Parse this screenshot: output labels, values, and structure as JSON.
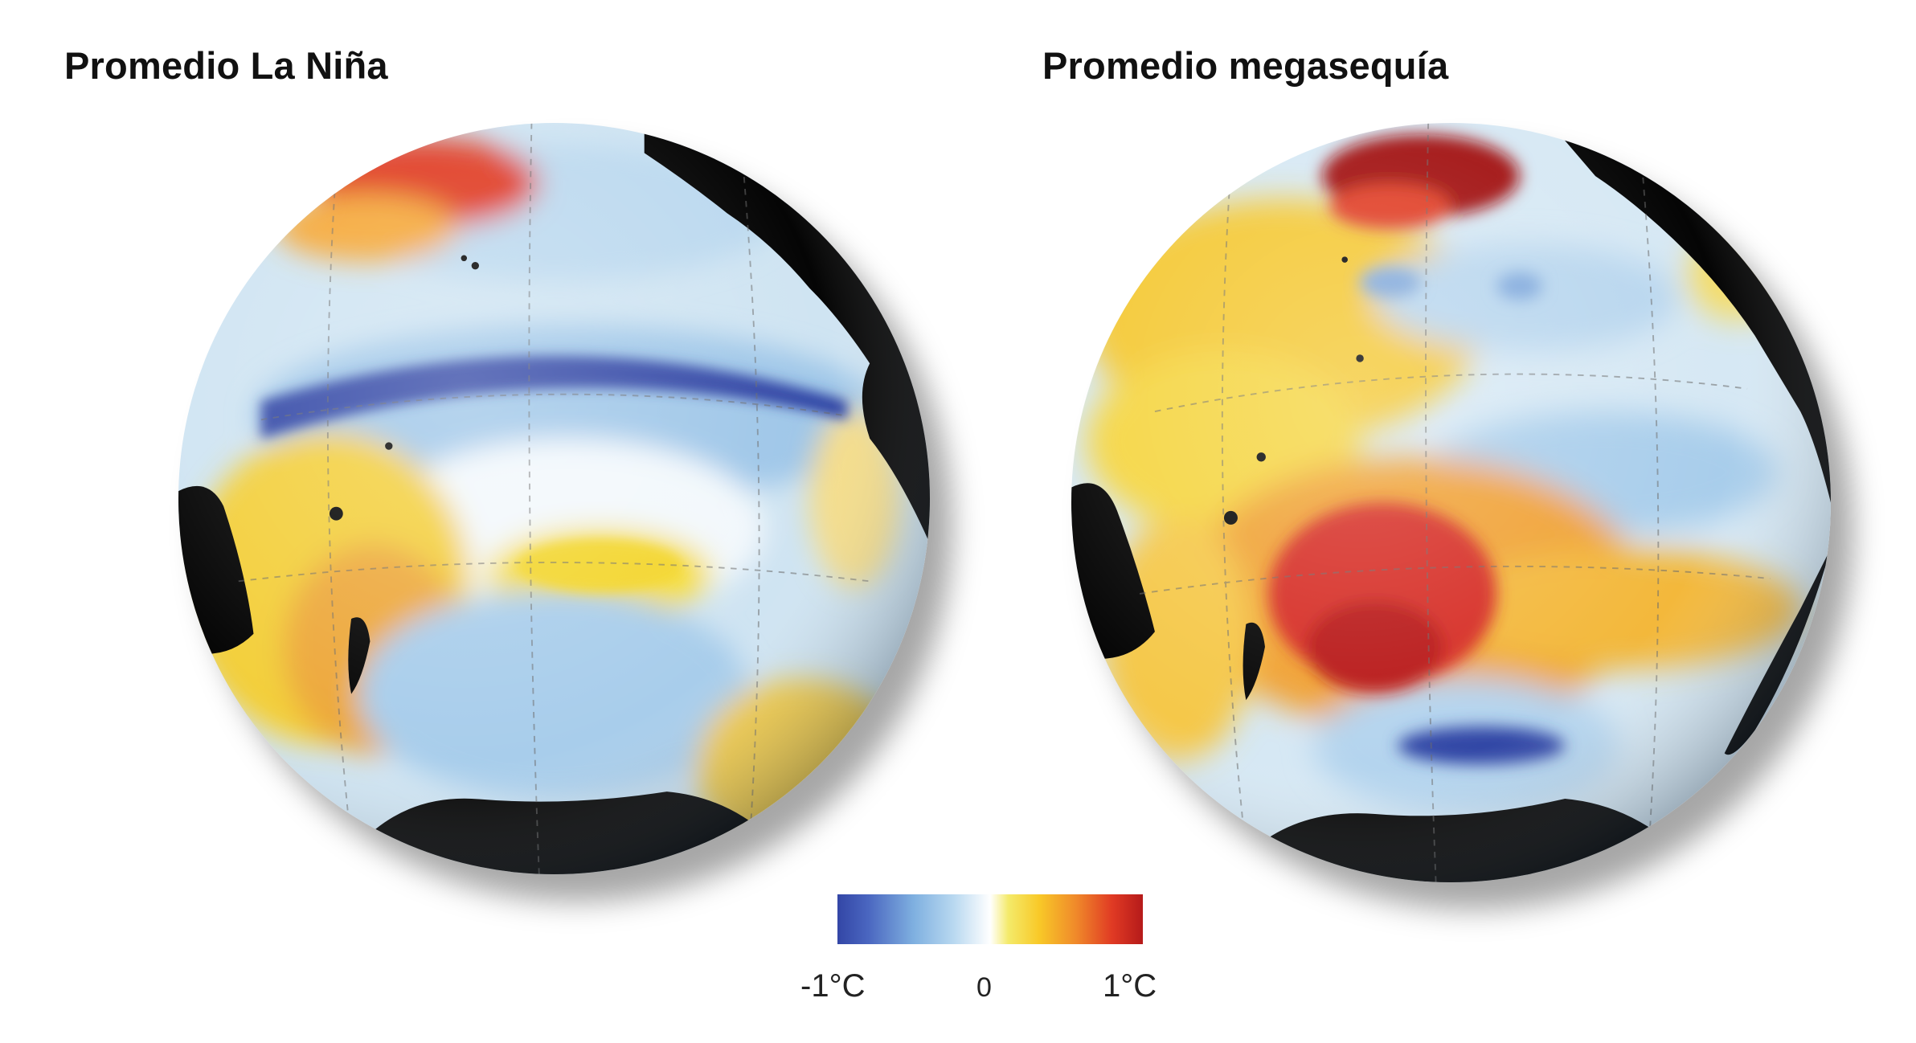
{
  "panels": [
    {
      "title": "Promedio La Niña"
    },
    {
      "title": "Promedio megasequía"
    }
  ],
  "legend": {
    "min_label": "-1°C",
    "mid_label": "0",
    "max_label": "1°C",
    "colors": [
      "#3346a6",
      "#7fb0e0",
      "#ffffff",
      "#f8c928",
      "#f08a2a",
      "#b51a1a"
    ]
  }
}
